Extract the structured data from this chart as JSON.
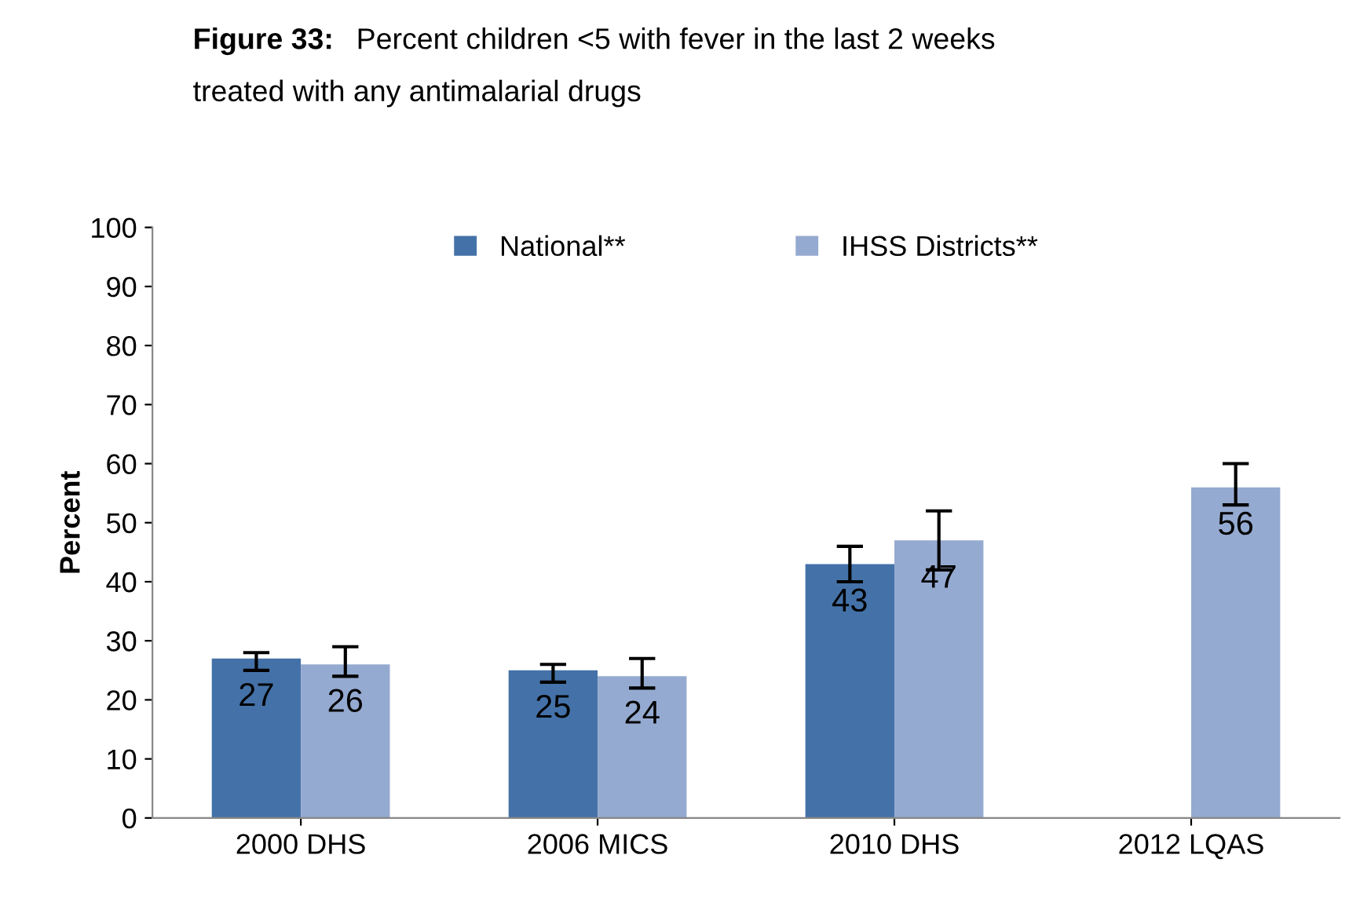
{
  "chart_data": {
    "type": "bar",
    "title": "Figure 33: Percent children <5 with fever in the last 2 weeks\ntreated with any antimalarial drugs",
    "ylabel": "Percent",
    "categories": [
      "2000 DHS",
      "2006 MICS",
      "2010 DHS",
      "2012 LQAS"
    ],
    "series": [
      {
        "name": "National**",
        "color": "#4472a8",
        "values": [
          27,
          25,
          43,
          null
        ],
        "errors": [
          [
            25,
            28
          ],
          [
            23,
            26
          ],
          [
            40,
            46
          ],
          null
        ]
      },
      {
        "name": "IHSS Districts**",
        "color": "#95aad0",
        "values": [
          26,
          24,
          47,
          56
        ],
        "errors": [
          [
            24,
            29
          ],
          [
            22,
            27
          ],
          [
            42,
            52
          ],
          [
            53,
            60
          ]
        ]
      }
    ],
    "ylim": [
      0,
      100
    ],
    "yticks": [
      0,
      10,
      20,
      30,
      40,
      50,
      60,
      70,
      80,
      90,
      100
    ],
    "data_labels": true,
    "legend": "top",
    "grid": false
  }
}
